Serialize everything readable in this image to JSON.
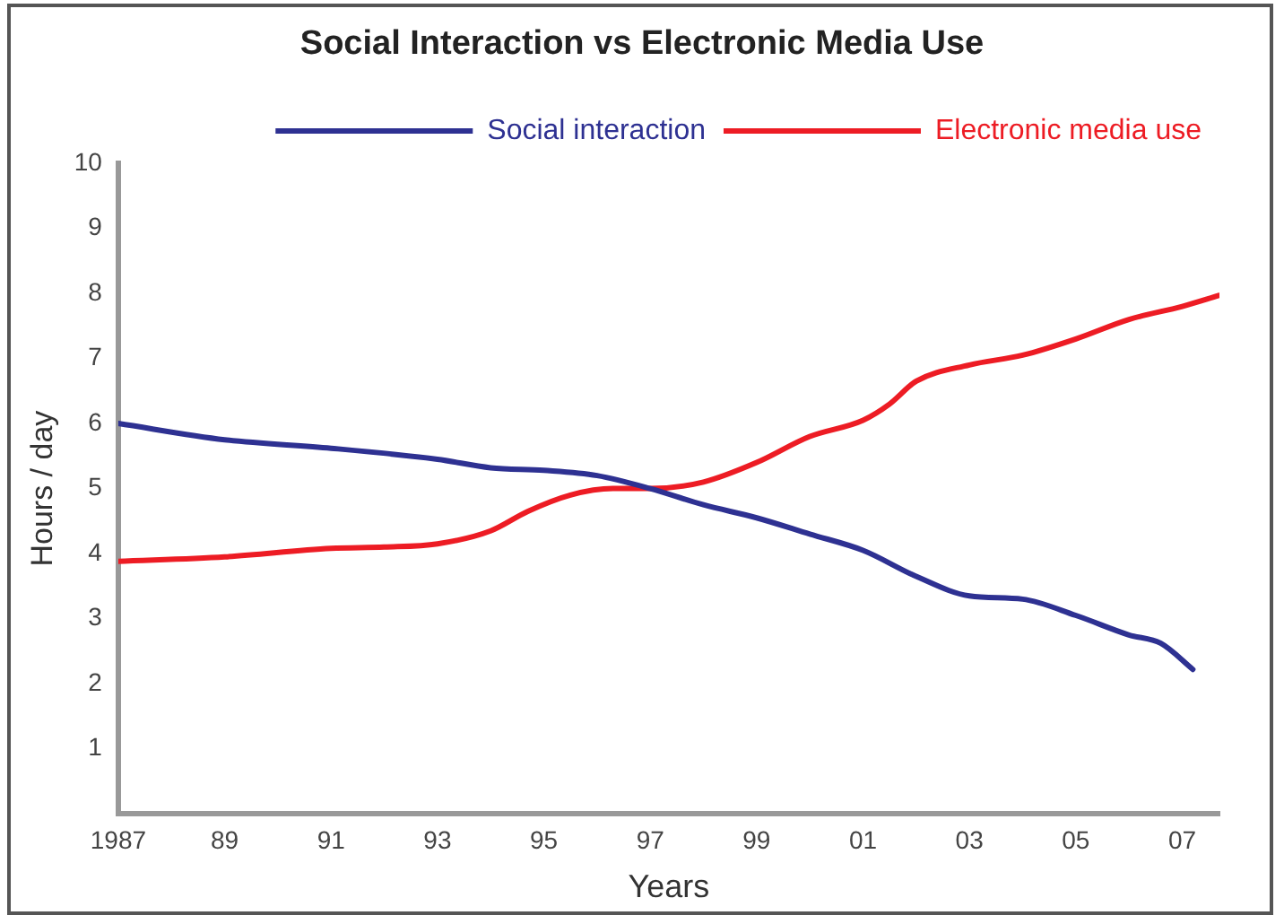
{
  "chart_data": {
    "type": "line",
    "title": "Social Interaction vs Electronic Media Use",
    "xlabel": "Years",
    "ylabel": "Hours / day",
    "xlim": [
      1987,
      2007.7
    ],
    "xticks": [
      {
        "value": 1987,
        "label": "1987"
      },
      {
        "value": 1989,
        "label": "89"
      },
      {
        "value": 1991,
        "label": "91"
      },
      {
        "value": 1993,
        "label": "93"
      },
      {
        "value": 1995,
        "label": "95"
      },
      {
        "value": 1997,
        "label": "97"
      },
      {
        "value": 1999,
        "label": "99"
      },
      {
        "value": 2001,
        "label": "01"
      },
      {
        "value": 2003,
        "label": "03"
      },
      {
        "value": 2005,
        "label": "05"
      },
      {
        "value": 2007,
        "label": "07"
      }
    ],
    "ylim": [
      0,
      10
    ],
    "yticks": [
      1,
      2,
      3,
      4,
      5,
      6,
      7,
      8,
      9,
      10
    ],
    "grid": false,
    "legend": "top right",
    "marker": "none",
    "line_style": "solid",
    "series": [
      {
        "name": "Social interaction",
        "color": "#2e3192",
        "x": [
          1987,
          1989,
          1991,
          1993,
          1994,
          1995,
          1996,
          1997,
          1998,
          1999,
          2000,
          2001,
          2002,
          2003,
          2004,
          2005,
          2006,
          2006.6,
          2007.2
        ],
        "values": [
          6.0,
          5.75,
          5.62,
          5.45,
          5.32,
          5.28,
          5.2,
          5.0,
          4.75,
          4.55,
          4.3,
          4.05,
          3.65,
          3.35,
          3.3,
          3.05,
          2.75,
          2.62,
          2.22
        ]
      },
      {
        "name": "Electronic media use",
        "color": "#ed1c24",
        "x": [
          1987,
          1989,
          1991,
          1992,
          1993,
          1994,
          1994.7,
          1995.5,
          1996.3,
          1997,
          1998,
          1999,
          2000,
          2001,
          2001.5,
          2002,
          2003,
          2004,
          2005,
          2006,
          2007,
          2007.7
        ],
        "values": [
          3.88,
          3.95,
          4.08,
          4.1,
          4.15,
          4.35,
          4.65,
          4.9,
          5.0,
          5.0,
          5.1,
          5.4,
          5.8,
          6.05,
          6.3,
          6.65,
          6.9,
          7.05,
          7.3,
          7.6,
          7.8,
          7.97
        ]
      }
    ]
  }
}
